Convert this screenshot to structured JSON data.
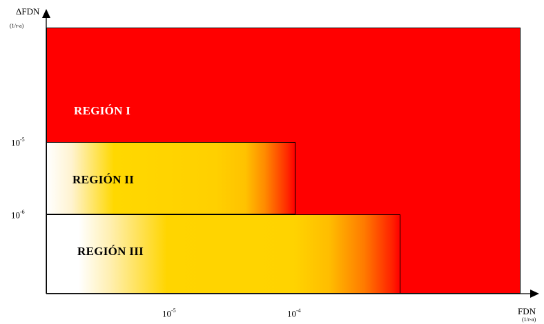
{
  "y_axis": {
    "title": "ΔFDN",
    "unit": "(1/r-a)"
  },
  "x_axis": {
    "title": "FDN",
    "unit": "(1/r-a)"
  },
  "y_ticks": [
    {
      "base": "10",
      "exp": "-5"
    },
    {
      "base": "10",
      "exp": "-6"
    }
  ],
  "x_ticks": [
    {
      "base": "10",
      "exp": "-5"
    },
    {
      "base": "10",
      "exp": "-4"
    }
  ],
  "regions": [
    {
      "label": "REGIÓN I",
      "color": "#ff0000"
    },
    {
      "label": "REGIÓN II",
      "color": "#ffd700"
    },
    {
      "label": "REGIÓN III",
      "color": "#ffd700"
    }
  ]
}
